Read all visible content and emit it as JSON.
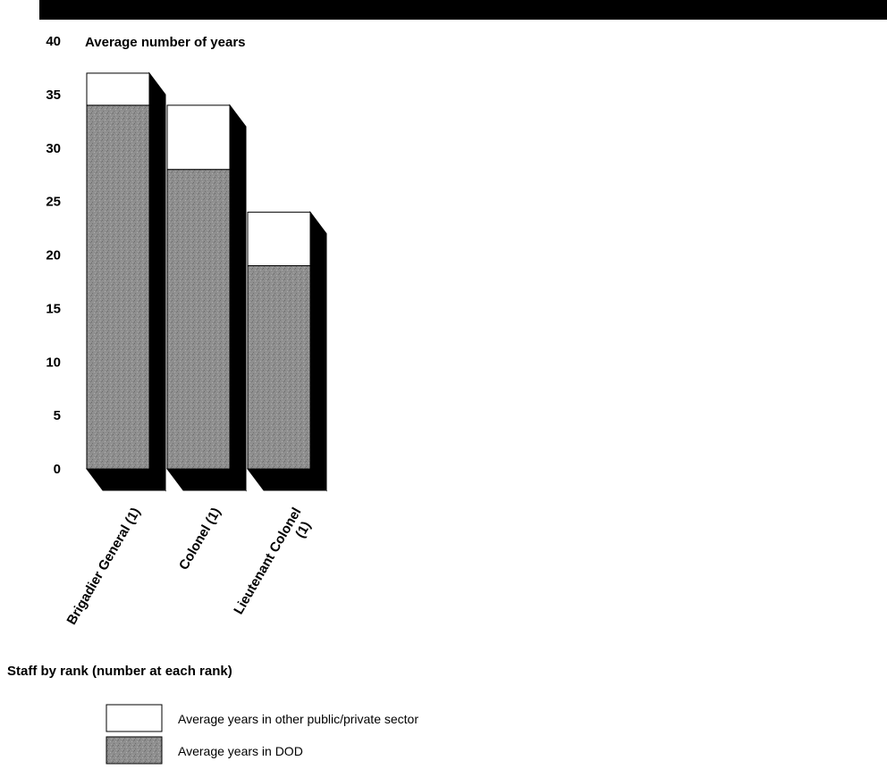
{
  "chart_data": {
    "type": "bar",
    "stacked": true,
    "ylabel": "Average number of years",
    "xlabel": "Staff by rank (number at each rank)",
    "ylim": [
      0,
      40
    ],
    "yticks": [
      "0",
      "5",
      "10",
      "15",
      "20",
      "25",
      "30",
      "35",
      "40"
    ],
    "categories": [
      "Brigadier General (1)",
      "Colonel (1)",
      "Lieutenant Colonel (1)"
    ],
    "category_lines": [
      [
        "Brigadier General (1)"
      ],
      [
        "Colonel (1)"
      ],
      [
        "Lieutenant Colonel",
        "(1)"
      ]
    ],
    "series": [
      {
        "name": "Average years in DOD",
        "values": [
          34,
          28,
          19
        ],
        "color": "#8c8c8c"
      },
      {
        "name": "Average years in other public/private sector",
        "values": [
          3,
          6,
          5
        ],
        "color": "#ffffff"
      }
    ],
    "legend": [
      "Average years in other public/private sector",
      "Average years in DOD"
    ],
    "legend_position": "bottom-left",
    "grid": false
  }
}
